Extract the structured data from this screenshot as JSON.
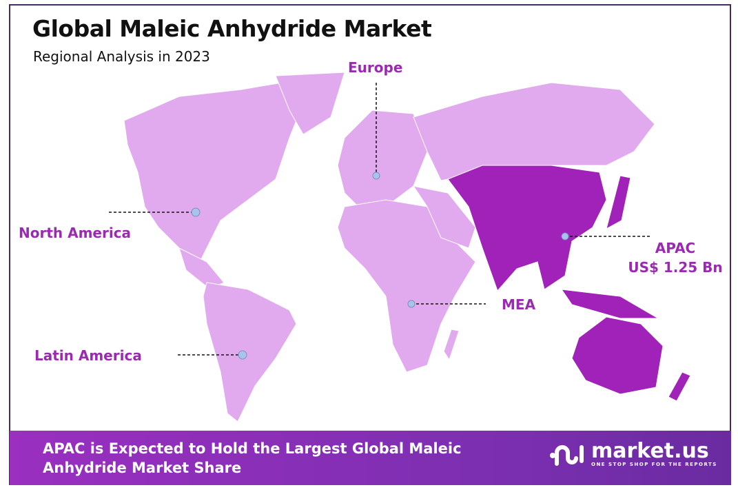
{
  "header": {
    "title": "Global Maleic Anhydride Market",
    "subtitle": "Regional Analysis in 2023"
  },
  "regions": [
    {
      "name": "North America",
      "highlighted": false
    },
    {
      "name": "Europe",
      "highlighted": false
    },
    {
      "name": "Latin America",
      "highlighted": false
    },
    {
      "name": "MEA",
      "highlighted": false
    },
    {
      "name": "APAC",
      "value": "US$ 1.25 Bn",
      "highlighted": true
    }
  ],
  "colors": {
    "land": "#e2aaee",
    "highlight": "#a022b8",
    "label": "#9a2ab0",
    "marker": "#a9c4ec",
    "banner": "#8a2fba"
  },
  "footer": {
    "text": "APAC is Expected to Hold the Largest Global Maleic Anhydride Market Share",
    "logo": {
      "name": "market.us",
      "tagline": "ONE STOP SHOP FOR THE REPORTS"
    }
  }
}
